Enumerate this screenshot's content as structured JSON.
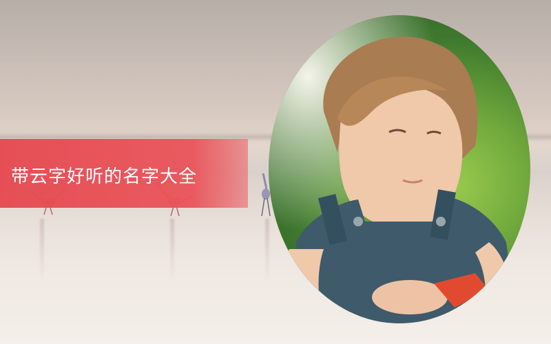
{
  "title": "带云字好听的名字大全",
  "icons": [
    "flamingo-icon",
    "flamingo-icon",
    "flamingo-icon"
  ],
  "colors": {
    "ribbon": "#e64a52",
    "title_text": "#ffffff",
    "sky": "#d8cbc2",
    "water": "#efe8e2"
  }
}
